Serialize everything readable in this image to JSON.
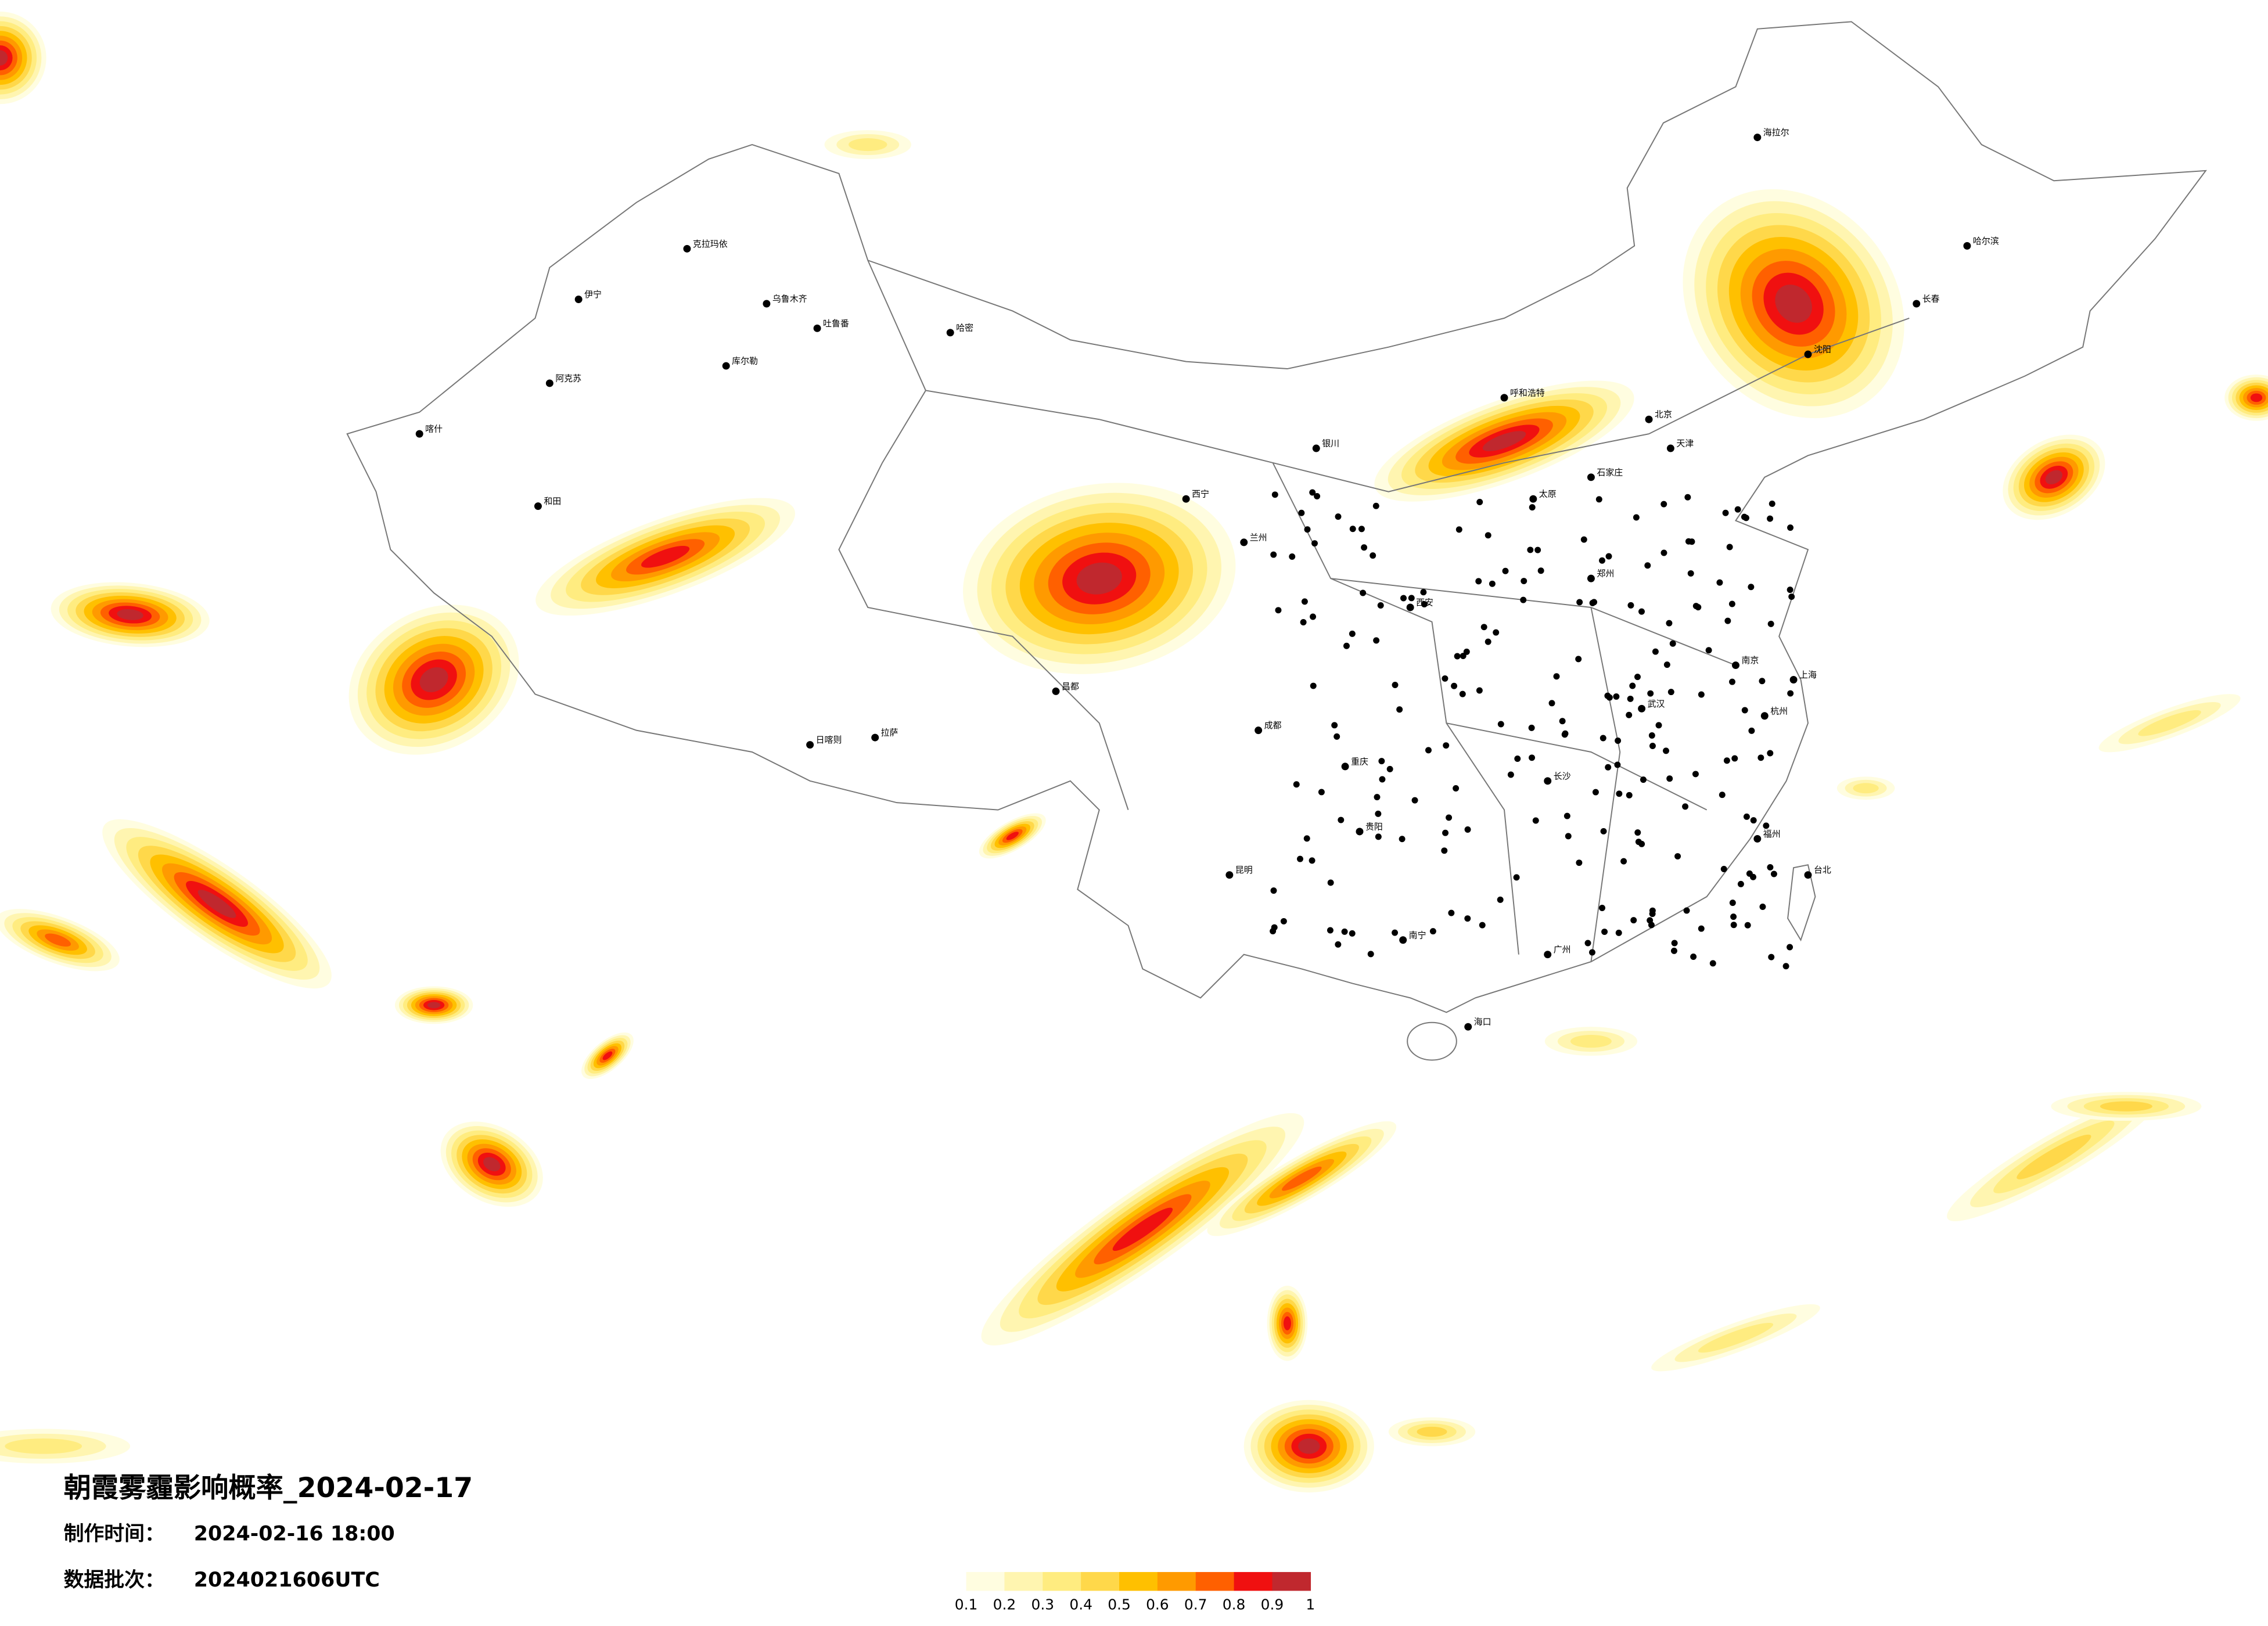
{
  "title": "朝霞雾霾影响概率_2024-02-17",
  "make_time": {
    "label": "制作时间：",
    "value": "2024-02-16 18:00"
  },
  "batch": {
    "label": "数据批次：",
    "value": "2024021606UTC"
  },
  "legend": {
    "colors": [
      "#fffde0",
      "#fff5b0",
      "#ffec80",
      "#ffd84a",
      "#ffc000",
      "#ff9a00",
      "#ff6000",
      "#f01010",
      "#c0282e"
    ],
    "ticks": [
      0.1,
      0.2,
      0.3,
      0.4,
      0.5,
      0.6,
      0.7,
      0.8,
      0.9,
      1
    ]
  },
  "cities": [
    "克拉玛依",
    "乌鲁木齐",
    "吐鲁番",
    "哈密",
    "伊宁",
    "库尔勒",
    "阿克苏",
    "喀什",
    "和田",
    "日喀则",
    "拉萨",
    "昌都",
    "西宁",
    "兰州",
    "银川",
    "呼和浩特",
    "北京",
    "天津",
    "石家庄",
    "太原",
    "西安",
    "郑州",
    "成都",
    "重庆",
    "贵阳",
    "昆明",
    "南宁",
    "广州",
    "长沙",
    "武汉",
    "南京",
    "上海",
    "杭州",
    "福州",
    "台北",
    "海口",
    "沈阳",
    "长春",
    "哈尔滨",
    "海拉尔"
  ]
}
